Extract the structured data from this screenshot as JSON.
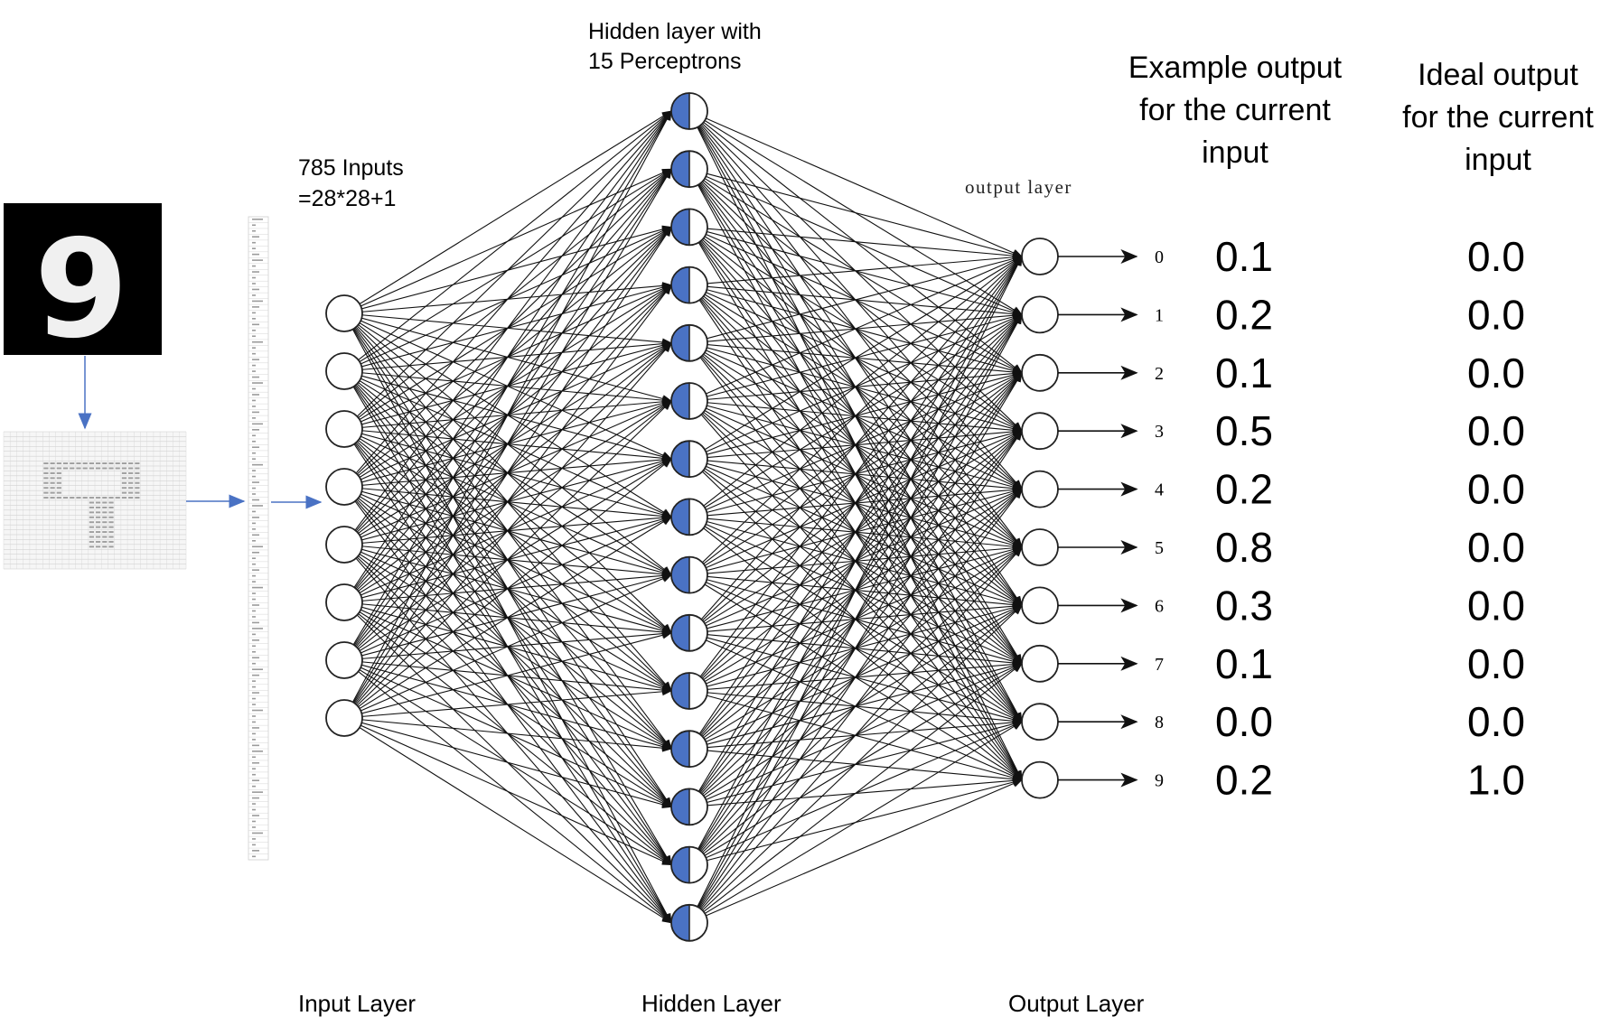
{
  "input_digit": {
    "glyph": "9"
  },
  "labels": {
    "hidden_header_line1": "Hidden layer with",
    "hidden_header_line2": "15 Perceptrons",
    "inputs_line1": "785 Inputs",
    "inputs_line2": "=28*28+1",
    "output_layer_small": "output layer",
    "example_header_line1": "Example output",
    "example_header_line2": "for the current",
    "example_header_line3": "input",
    "ideal_header_line1": "Ideal output",
    "ideal_header_line2": "for the current",
    "ideal_header_line3": "input",
    "input_layer": "Input Layer",
    "hidden_layer": "Hidden Layer",
    "output_layer": "Output Layer"
  },
  "network": {
    "input_nodes": 8,
    "hidden_nodes": 15,
    "output_nodes": 10
  },
  "outputs": [
    {
      "digit": "0",
      "example": "0.1",
      "ideal": "0.0"
    },
    {
      "digit": "1",
      "example": "0.2",
      "ideal": "0.0"
    },
    {
      "digit": "2",
      "example": "0.1",
      "ideal": "0.0"
    },
    {
      "digit": "3",
      "example": "0.5",
      "ideal": "0.0"
    },
    {
      "digit": "4",
      "example": "0.2",
      "ideal": "0.0"
    },
    {
      "digit": "5",
      "example": "0.8",
      "ideal": "0.0"
    },
    {
      "digit": "6",
      "example": "0.3",
      "ideal": "0.0"
    },
    {
      "digit": "7",
      "example": "0.1",
      "ideal": "0.0"
    },
    {
      "digit": "8",
      "example": "0.0",
      "ideal": "0.0"
    },
    {
      "digit": "9",
      "example": "0.2",
      "ideal": "1.0"
    }
  ],
  "colors": {
    "hidden_fill": "#4a72c4",
    "arrow_blue": "#4a72c4",
    "line": "#111111",
    "grid_text": "#7a7a7a"
  }
}
